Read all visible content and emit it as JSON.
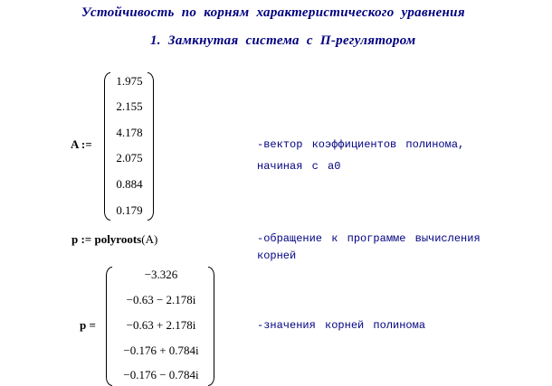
{
  "title": "Устойчивость  по  корням  характеристического  уравнения",
  "subtitle": "1. Замкнутая система с П-регулятором",
  "vector_a": {
    "lhs": "A :=",
    "values": [
      "1.975",
      "2.155",
      "4.178",
      "2.075",
      "0.884",
      "0.179"
    ],
    "comment_line1": "-вектор  коэффициентов  полинома,",
    "comment_line2": " начиная  с  а0"
  },
  "polyroots": {
    "lhs": "p := ",
    "func": "polyroots",
    "arg": "(A)",
    "comment_line1": "-обращение  к  программе  вычисления",
    "comment_line2": "корней"
  },
  "roots": {
    "lhs": "p =",
    "values": [
      "−3.326",
      "−0.63 − 2.178i",
      "−0.63 + 2.178i",
      "−0.176 + 0.784i",
      "−0.176 − 0.784i"
    ],
    "comment": "-значения  корней  полинома"
  }
}
